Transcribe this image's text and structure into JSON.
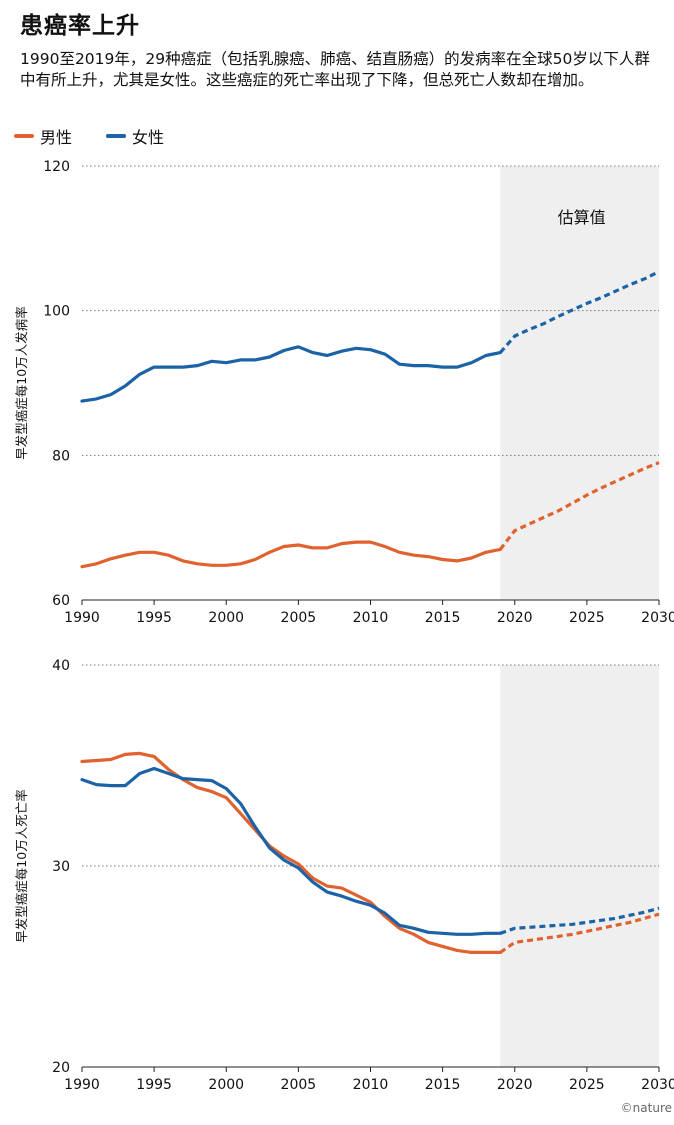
{
  "title": "患癌率上升",
  "subtitle": "1990至2019年，29种癌症（包括乳腺癌、肺癌、结直肠癌）的发病率在全球50岁以下人群中有所上升，尤其是女性。这些癌症的死亡率出现了下降，但总死亡人数却在增加。",
  "legend": [
    {
      "label": "男性",
      "color": "#e0622e"
    },
    {
      "label": "女性",
      "color": "#1b63a6"
    }
  ],
  "credit": "©nature",
  "chart_data": [
    {
      "type": "line",
      "ylabel": "早发型癌症每10万人发病率",
      "ylim": [
        60,
        120
      ],
      "yticks": [
        60,
        80,
        100,
        120
      ],
      "xlim": [
        1990,
        2030
      ],
      "xticks": [
        1990,
        1995,
        2000,
        2005,
        2010,
        2015,
        2020,
        2025,
        2030
      ],
      "shaded_region": {
        "from": 2019,
        "to": 2030,
        "label": "估算值"
      },
      "series": [
        {
          "name": "女性",
          "color": "#1b63a6",
          "observed": {
            "x": [
              1990,
              1991,
              1992,
              1993,
              1994,
              1995,
              1996,
              1997,
              1998,
              1999,
              2000,
              2001,
              2002,
              2003,
              2004,
              2005,
              2006,
              2007,
              2008,
              2009,
              2010,
              2011,
              2012,
              2013,
              2014,
              2015,
              2016,
              2017,
              2018,
              2019
            ],
            "y": [
              87.5,
              87.8,
              88.4,
              89.6,
              91.2,
              92.2,
              92.2,
              92.2,
              92.4,
              93.0,
              92.8,
              93.2,
              93.2,
              93.6,
              94.5,
              95.0,
              94.2,
              93.8,
              94.4,
              94.8,
              94.6,
              94.0,
              92.6,
              92.4,
              92.4,
              92.2,
              92.2,
              92.8,
              93.8,
              94.2
            ]
          },
          "estimated": {
            "x": [
              2019,
              2020,
              2021,
              2022,
              2023,
              2024,
              2025,
              2026,
              2027,
              2028,
              2029,
              2030
            ],
            "y": [
              94.2,
              96.5,
              97.4,
              98.2,
              99.2,
              100.1,
              101.0,
              101.8,
              102.7,
              103.6,
              104.4,
              105.4
            ]
          }
        },
        {
          "name": "男性",
          "color": "#e0622e",
          "observed": {
            "x": [
              1990,
              1991,
              1992,
              1993,
              1994,
              1995,
              1996,
              1997,
              1998,
              1999,
              2000,
              2001,
              2002,
              2003,
              2004,
              2005,
              2006,
              2007,
              2008,
              2009,
              2010,
              2011,
              2012,
              2013,
              2014,
              2015,
              2016,
              2017,
              2018,
              2019
            ],
            "y": [
              64.6,
              65.0,
              65.7,
              66.2,
              66.6,
              66.6,
              66.2,
              65.4,
              65.0,
              64.8,
              64.8,
              65.0,
              65.6,
              66.6,
              67.4,
              67.6,
              67.2,
              67.2,
              67.8,
              68.0,
              68.0,
              67.4,
              66.6,
              66.2,
              66.0,
              65.6,
              65.4,
              65.8,
              66.6,
              67.0
            ]
          },
          "estimated": {
            "x": [
              2019,
              2020,
              2021,
              2022,
              2023,
              2024,
              2025,
              2026,
              2027,
              2028,
              2029,
              2030
            ],
            "y": [
              67.0,
              69.6,
              70.5,
              71.4,
              72.3,
              73.4,
              74.5,
              75.5,
              76.4,
              77.3,
              78.2,
              79.0
            ]
          }
        }
      ]
    },
    {
      "type": "line",
      "ylabel": "早发型癌症每10万人死亡率",
      "ylim": [
        20,
        40
      ],
      "yticks": [
        20,
        30,
        40
      ],
      "xlim": [
        1990,
        2030
      ],
      "xticks": [
        1990,
        1995,
        2000,
        2005,
        2010,
        2015,
        2020,
        2025,
        2030
      ],
      "shaded_region": {
        "from": 2019,
        "to": 2030,
        "label": ""
      },
      "series": [
        {
          "name": "男性",
          "color": "#e0622e",
          "observed": {
            "x": [
              1990,
              1991,
              1992,
              1993,
              1994,
              1995,
              1996,
              1997,
              1998,
              1999,
              2000,
              2001,
              2002,
              2003,
              2004,
              2005,
              2006,
              2007,
              2008,
              2009,
              2010,
              2011,
              2012,
              2013,
              2014,
              2015,
              2016,
              2017,
              2018,
              2019
            ],
            "y": [
              35.2,
              35.25,
              35.3,
              35.55,
              35.6,
              35.45,
              34.8,
              34.3,
              33.9,
              33.7,
              33.4,
              32.6,
              31.8,
              31.0,
              30.5,
              30.1,
              29.4,
              29.0,
              28.9,
              28.55,
              28.2,
              27.5,
              26.9,
              26.6,
              26.2,
              26.0,
              25.8,
              25.7,
              25.7,
              25.7
            ]
          },
          "estimated": {
            "x": [
              2019,
              2020,
              2021,
              2022,
              2023,
              2024,
              2025,
              2026,
              2027,
              2028,
              2029,
              2030
            ],
            "y": [
              25.7,
              26.2,
              26.3,
              26.4,
              26.5,
              26.6,
              26.75,
              26.9,
              27.05,
              27.2,
              27.4,
              27.6
            ]
          }
        },
        {
          "name": "女性",
          "color": "#1b63a6",
          "observed": {
            "x": [
              1990,
              1991,
              1992,
              1993,
              1994,
              1995,
              1996,
              1997,
              1998,
              1999,
              2000,
              2001,
              2002,
              2003,
              2004,
              2005,
              2006,
              2007,
              2008,
              2009,
              2010,
              2011,
              2012,
              2013,
              2014,
              2015,
              2016,
              2017,
              2018,
              2019
            ],
            "y": [
              34.3,
              34.05,
              34.0,
              34.0,
              34.6,
              34.85,
              34.6,
              34.35,
              34.3,
              34.25,
              33.85,
              33.1,
              31.95,
              30.9,
              30.3,
              29.9,
              29.2,
              28.7,
              28.5,
              28.25,
              28.05,
              27.65,
              27.05,
              26.9,
              26.7,
              26.65,
              26.6,
              26.6,
              26.65,
              26.65
            ]
          },
          "estimated": {
            "x": [
              2019,
              2020,
              2021,
              2022,
              2023,
              2024,
              2025,
              2026,
              2027,
              2028,
              2029,
              2030
            ],
            "y": [
              26.65,
              26.9,
              26.95,
              27.0,
              27.05,
              27.1,
              27.2,
              27.3,
              27.4,
              27.55,
              27.7,
              27.9
            ]
          }
        }
      ]
    }
  ]
}
